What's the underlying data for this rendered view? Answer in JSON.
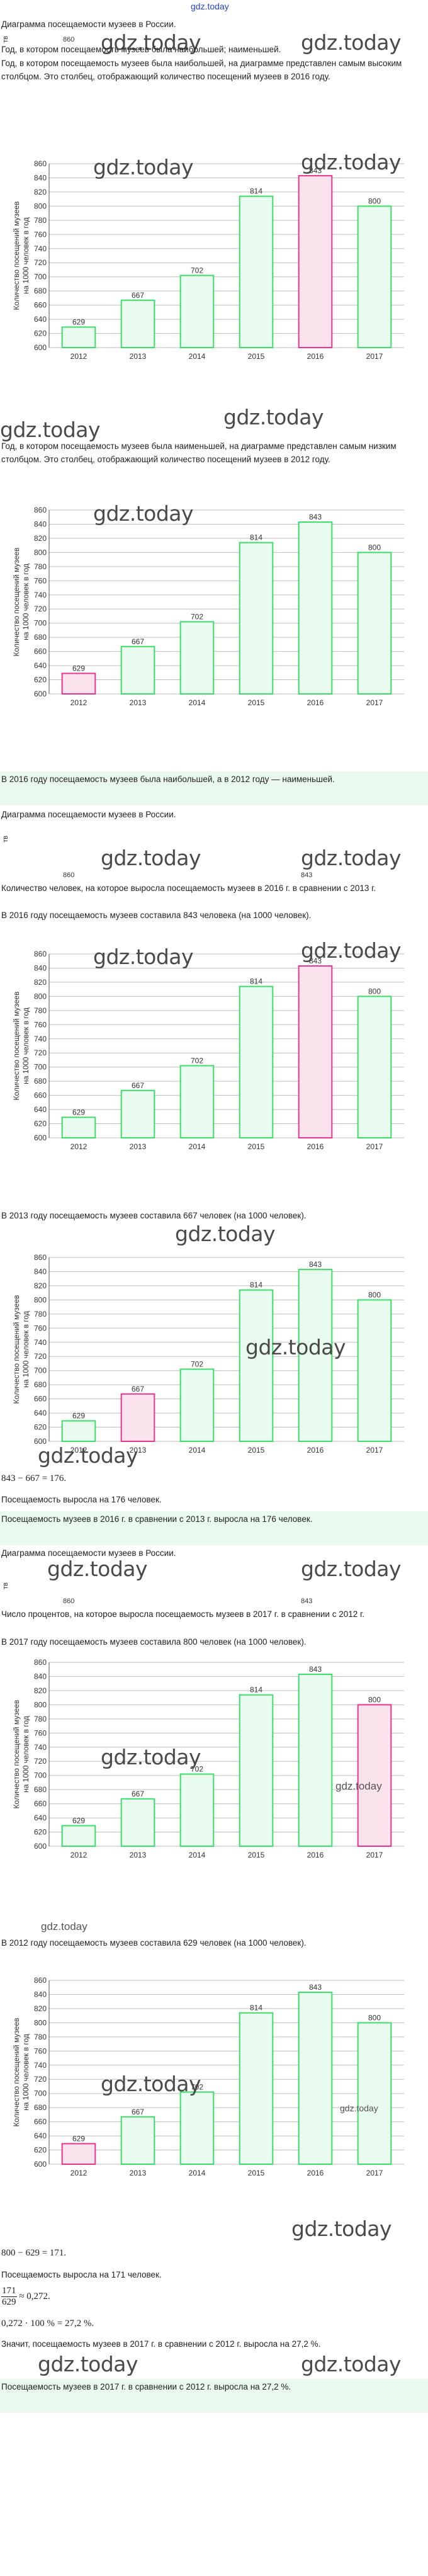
{
  "header": {
    "site_link": "gdz.today"
  },
  "watermark": "gdz.today",
  "diagram_stub": {
    "axis_tick": "860",
    "bar_value": "843",
    "tick_mark": "тв"
  },
  "chart_data": [
    {
      "type": "bar",
      "categories": [
        "2012",
        "2013",
        "2014",
        "2015",
        "2016",
        "2017"
      ],
      "values": [
        629,
        667,
        702,
        814,
        843,
        800
      ],
      "ylim": [
        600,
        860
      ],
      "yticks": [
        600,
        620,
        640,
        660,
        680,
        700,
        720,
        740,
        760,
        780,
        800,
        820,
        840,
        860
      ],
      "ylabel": "Количество посещений музеев на 1000 человек в год",
      "highlight": "2016",
      "grid": true
    },
    {
      "type": "bar",
      "categories": [
        "2012",
        "2013",
        "2014",
        "2015",
        "2016",
        "2017"
      ],
      "values": [
        629,
        667,
        702,
        814,
        843,
        800
      ],
      "ylim": [
        600,
        860
      ],
      "yticks": [
        600,
        620,
        640,
        660,
        680,
        700,
        720,
        740,
        760,
        780,
        800,
        820,
        840,
        860
      ],
      "ylabel": "Количество посещений музеев на 1000 человек в год",
      "highlight": "2012",
      "grid": true
    },
    {
      "type": "bar",
      "categories": [
        "2012",
        "2013",
        "2014",
        "2015",
        "2016",
        "2017"
      ],
      "values": [
        629,
        667,
        702,
        814,
        843,
        800
      ],
      "ylim": [
        600,
        860
      ],
      "yticks": [
        600,
        620,
        640,
        660,
        680,
        700,
        720,
        740,
        760,
        780,
        800,
        820,
        840,
        860
      ],
      "ylabel": "Количество посещений музеев на 1000 человек в год",
      "highlight": "2016",
      "grid": true
    },
    {
      "type": "bar",
      "categories": [
        "2012",
        "2013",
        "2014",
        "2015",
        "2016",
        "2017"
      ],
      "values": [
        629,
        667,
        702,
        814,
        843,
        800
      ],
      "ylim": [
        600,
        860
      ],
      "yticks": [
        600,
        620,
        640,
        660,
        680,
        700,
        720,
        740,
        760,
        780,
        800,
        820,
        840,
        860
      ],
      "ylabel": "Количество посещений музеев на 1000 человек в год",
      "highlight": "2013",
      "grid": true
    },
    {
      "type": "bar",
      "categories": [
        "2012",
        "2013",
        "2014",
        "2015",
        "2016",
        "2017"
      ],
      "values": [
        629,
        667,
        702,
        814,
        843,
        800
      ],
      "ylim": [
        600,
        860
      ],
      "yticks": [
        600,
        620,
        640,
        660,
        680,
        700,
        720,
        740,
        760,
        780,
        800,
        820,
        840,
        860
      ],
      "ylabel": "Количество посещений музеев на 1000 человек в год",
      "highlight": "2017",
      "grid": true
    },
    {
      "type": "bar",
      "categories": [
        "2012",
        "2013",
        "2014",
        "2015",
        "2016",
        "2017"
      ],
      "values": [
        629,
        667,
        702,
        814,
        843,
        800
      ],
      "ylim": [
        600,
        860
      ],
      "yticks": [
        600,
        620,
        640,
        660,
        680,
        700,
        720,
        740,
        760,
        780,
        800,
        820,
        840,
        860
      ],
      "ylabel": "Количество посещений музеев на 1000 человек в год",
      "highlight": "2012",
      "grid": true
    }
  ],
  "colors": {
    "bar": "#3ddc6a",
    "highlight": "#e8338f",
    "highlight_fill": "#fbe3ee",
    "bar_fill": "#e9fbef",
    "answer_bg": "#e9f9ee"
  },
  "text": {
    "s1_title": "Диаграмма посещаемости музеев в России.",
    "s1_p1": "Год, в котором посещаемость музеев была наибольшей; наименьшей.",
    "s1_p2": "Год, в котором посещаемость музеев была наибольшей, на диаграмме представлен самым высоким столбцом. Это столбец, отображающий количество посещений музеев в 2016 году.",
    "s1_p3": "Год, в котором посещаемость музеев была наименьшей, на диаграмме представлен самым низким столбцом. Это столбец, отображающий количество посещений музеев в 2012 году.",
    "s1_answer": "В 2016 году посещаемость музеев была наибольшей, а в 2012 году — наименьшей.",
    "s2_title": "Диаграмма посещаемости музеев в России.",
    "s2_p1": "Количество человек, на которое выросла посещаемость музеев в 2016 г. в сравнении с 2013 г.",
    "s2_p2": "В 2016 году посещаемость музеев составила 843 человека (на 1000 человек).",
    "s2_p3": "В 2013 году посещаемость музеев составила 667 человек (на 1000 человек).",
    "s2_calc": "843 − 667 = 176.",
    "s2_p4": "Посещаемость выросла на 176 человек.",
    "s2_answer": "Посещаемость музеев в 2016 г. в сравнении с 2013 г. выросла на 176 человек.",
    "s3_title": "Диаграмма посещаемости музеев в России.",
    "s3_p1": "Число процентов, на которое выросла посещаемость музеев в 2017 г. в сравнении с 2012 г.",
    "s3_p2": "В 2017 году посещаемость музеев составила 800 человек (на 1000 человек).",
    "s3_p3": "В 2012 году посещаемость музеев составила 629 человек (на 1000 человек).",
    "s3_calc1": "800 − 629 = 171.",
    "s3_p4": "Посещаемость выросла на 171 человек.",
    "s3_frac_num": "171",
    "s3_frac_den": "629",
    "s3_frac_res": "≈ 0,272.",
    "s3_calc2": "0,272 · 100 % = 27,2 %.",
    "s3_p5": "Значит, посещаемость музеев в 2017 г. в сравнении с 2012 г. выросла на 27,2 %.",
    "s3_answer": "Посещаемость музеев в 2017 г. в сравнении с 2012 г. выросла на 27,2 %."
  }
}
